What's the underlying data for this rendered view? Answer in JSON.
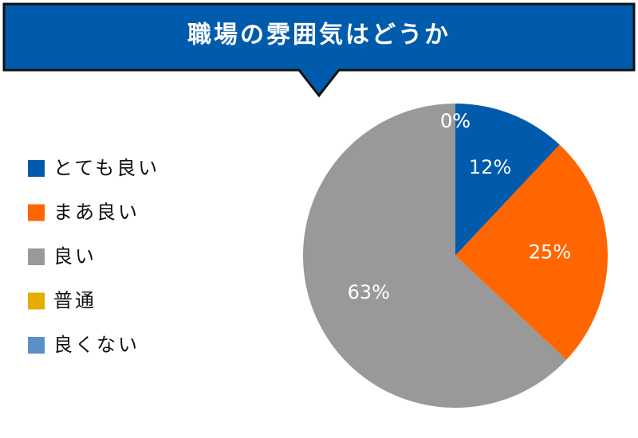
{
  "chart_data": {
    "type": "pie",
    "title": "職場の雰囲気はどうか",
    "categories": [
      "とても良い",
      "まあ良い",
      "良い",
      "普通",
      "良くない"
    ],
    "values": [
      12,
      25,
      63,
      0,
      0
    ],
    "value_labels": [
      "12%",
      "25%",
      "63%",
      "0%",
      "0%"
    ],
    "colors": [
      "#005bac",
      "#ff6600",
      "#999999",
      "#e6ac00",
      "#5b8fc8"
    ],
    "legend": "left"
  }
}
